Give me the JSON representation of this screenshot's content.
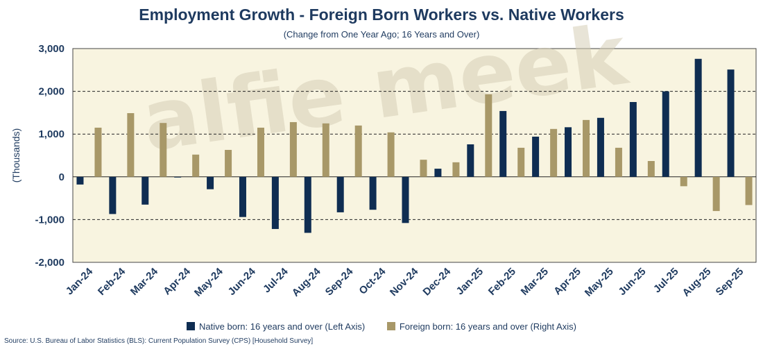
{
  "chart_data": {
    "type": "bar",
    "title": "Employment Growth - Foreign Born Workers vs. Native Workers",
    "subtitle": "(Change from One Year Ago; 16 Years and Over)",
    "ylabel": "(Thousands)",
    "ylim": [
      -2000,
      3000
    ],
    "yticks": [
      3000,
      2000,
      1000,
      0,
      -1000,
      -2000
    ],
    "ytick_labels": [
      "3,000",
      "2,000",
      "1,000",
      "0",
      "-1,000",
      "-2,000"
    ],
    "grid": "horizontal dashed",
    "legend_position": "bottom",
    "categories": [
      "Jan-24",
      "Feb-24",
      "Mar-24",
      "Apr-24",
      "May-24",
      "Jun-24",
      "Jul-24",
      "Aug-24",
      "Sep-24",
      "Oct-24",
      "Nov-24",
      "Dec-24",
      "Jan-25",
      "Feb-25",
      "Mar-25",
      "Apr-25",
      "May-25",
      "Jun-25",
      "Jul-25",
      "Aug-25",
      "Sep-25"
    ],
    "series": [
      {
        "name": "Native born: 16 years and over (Left Axis)",
        "color": "#0f2d52",
        "values": [
          -180,
          -870,
          -650,
          -10,
          -290,
          -940,
          -1220,
          -1310,
          -830,
          -770,
          -1080,
          190,
          760,
          1540,
          940,
          1160,
          1380,
          1750,
          2000,
          2760,
          2510
        ]
      },
      {
        "name": "Foreign born: 16 years and over (Right Axis)",
        "color": "#a89868",
        "values": [
          1150,
          1490,
          1260,
          520,
          630,
          1150,
          1280,
          1250,
          1200,
          1040,
          400,
          340,
          1930,
          680,
          1120,
          1330,
          680,
          370,
          -220,
          -800,
          -660
        ]
      }
    ],
    "watermark": "alfie meek"
  },
  "colors": {
    "plot_background": "#f8f4e0",
    "title_text": "#1e3a5f"
  },
  "source_note": "Source: U.S. Bureau of Labor Statistics (BLS): Current Population Survey (CPS) [Household Survey]"
}
